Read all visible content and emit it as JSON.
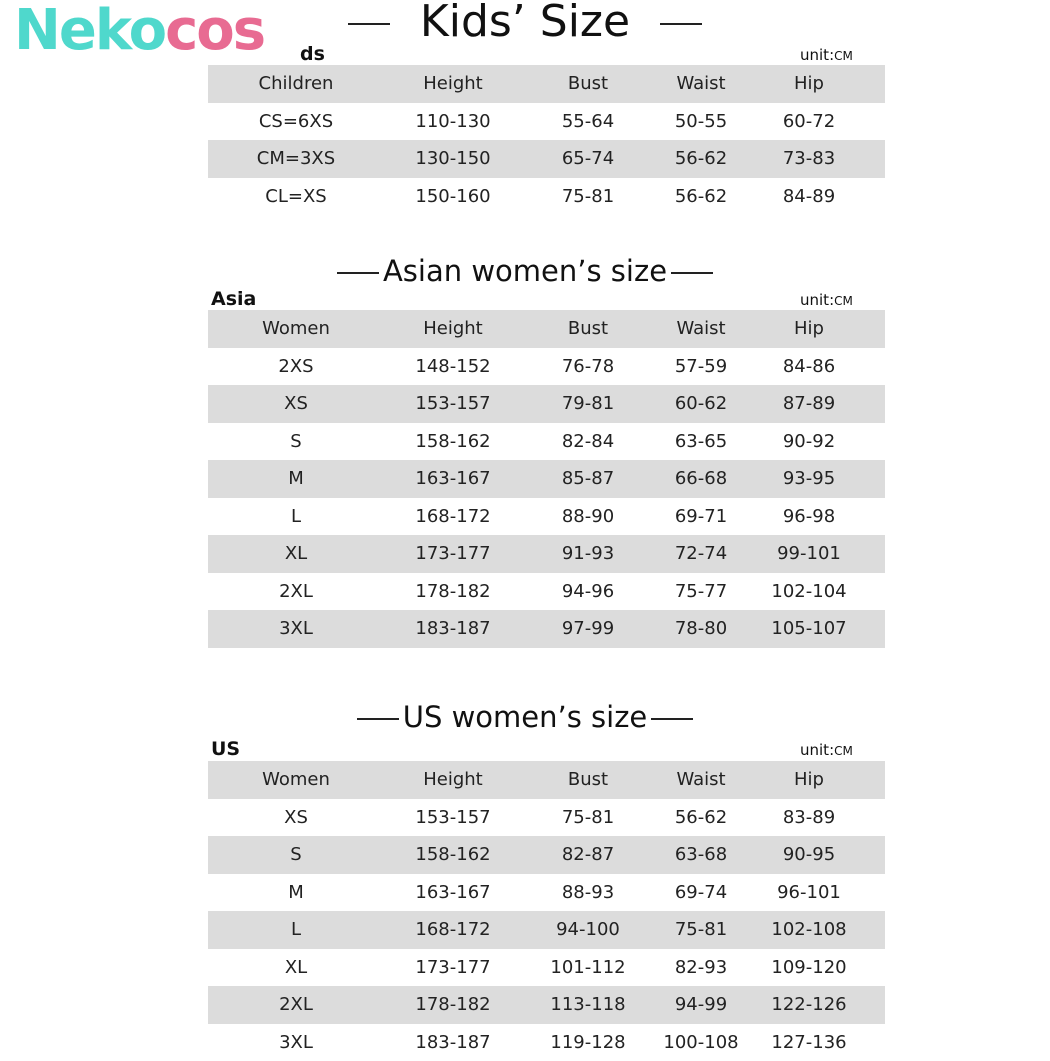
{
  "logo": {
    "part1": "Neko",
    "part2": "cos",
    "colors": {
      "teal": "#4fd8cc",
      "pink": "#e86b92"
    }
  },
  "kids": {
    "title": "Kids’ Size",
    "tag": "ds",
    "unit_label": "unit",
    "unit_value": "CM",
    "headers": [
      "Children",
      "Height",
      "Bust",
      "Waist",
      "Hip"
    ],
    "rows": [
      [
        "CS=6XS",
        "110-130",
        "55-64",
        "50-55",
        "60-72"
      ],
      [
        "CM=3XS",
        "130-150",
        "65-74",
        "56-62",
        "73-83"
      ],
      [
        "CL=XS",
        "150-160",
        "75-81",
        "56-62",
        "84-89"
      ]
    ]
  },
  "asia": {
    "title": "Asian women’s size",
    "tag": "Asia",
    "unit_label": "unit",
    "unit_value": "CM",
    "headers": [
      "Women",
      "Height",
      "Bust",
      "Waist",
      "Hip"
    ],
    "rows": [
      [
        "2XS",
        "148-152",
        "76-78",
        "57-59",
        "84-86"
      ],
      [
        "XS",
        "153-157",
        "79-81",
        "60-62",
        "87-89"
      ],
      [
        "S",
        "158-162",
        "82-84",
        "63-65",
        "90-92"
      ],
      [
        "M",
        "163-167",
        "85-87",
        "66-68",
        "93-95"
      ],
      [
        "L",
        "168-172",
        "88-90",
        "69-71",
        "96-98"
      ],
      [
        "XL",
        "173-177",
        "91-93",
        "72-74",
        "99-101"
      ],
      [
        "2XL",
        "178-182",
        "94-96",
        "75-77",
        "102-104"
      ],
      [
        "3XL",
        "183-187",
        "97-99",
        "78-80",
        "105-107"
      ]
    ]
  },
  "us": {
    "title": "US women’s size",
    "tag": "US",
    "unit_label": "unit",
    "unit_value": "CM",
    "headers": [
      "Women",
      "Height",
      "Bust",
      "Waist",
      "Hip"
    ],
    "rows": [
      [
        "XS",
        "153-157",
        "75-81",
        "56-62",
        "83-89"
      ],
      [
        "S",
        "158-162",
        "82-87",
        "63-68",
        "90-95"
      ],
      [
        "M",
        "163-167",
        "88-93",
        "69-74",
        "96-101"
      ],
      [
        "L",
        "168-172",
        "94-100",
        "75-81",
        "102-108"
      ],
      [
        "XL",
        "173-177",
        "101-112",
        "82-93",
        "109-120"
      ],
      [
        "2XL",
        "178-182",
        "113-118",
        "94-99",
        "122-126"
      ],
      [
        "3XL",
        "183-187",
        "119-128",
        "100-108",
        "127-136"
      ]
    ]
  }
}
